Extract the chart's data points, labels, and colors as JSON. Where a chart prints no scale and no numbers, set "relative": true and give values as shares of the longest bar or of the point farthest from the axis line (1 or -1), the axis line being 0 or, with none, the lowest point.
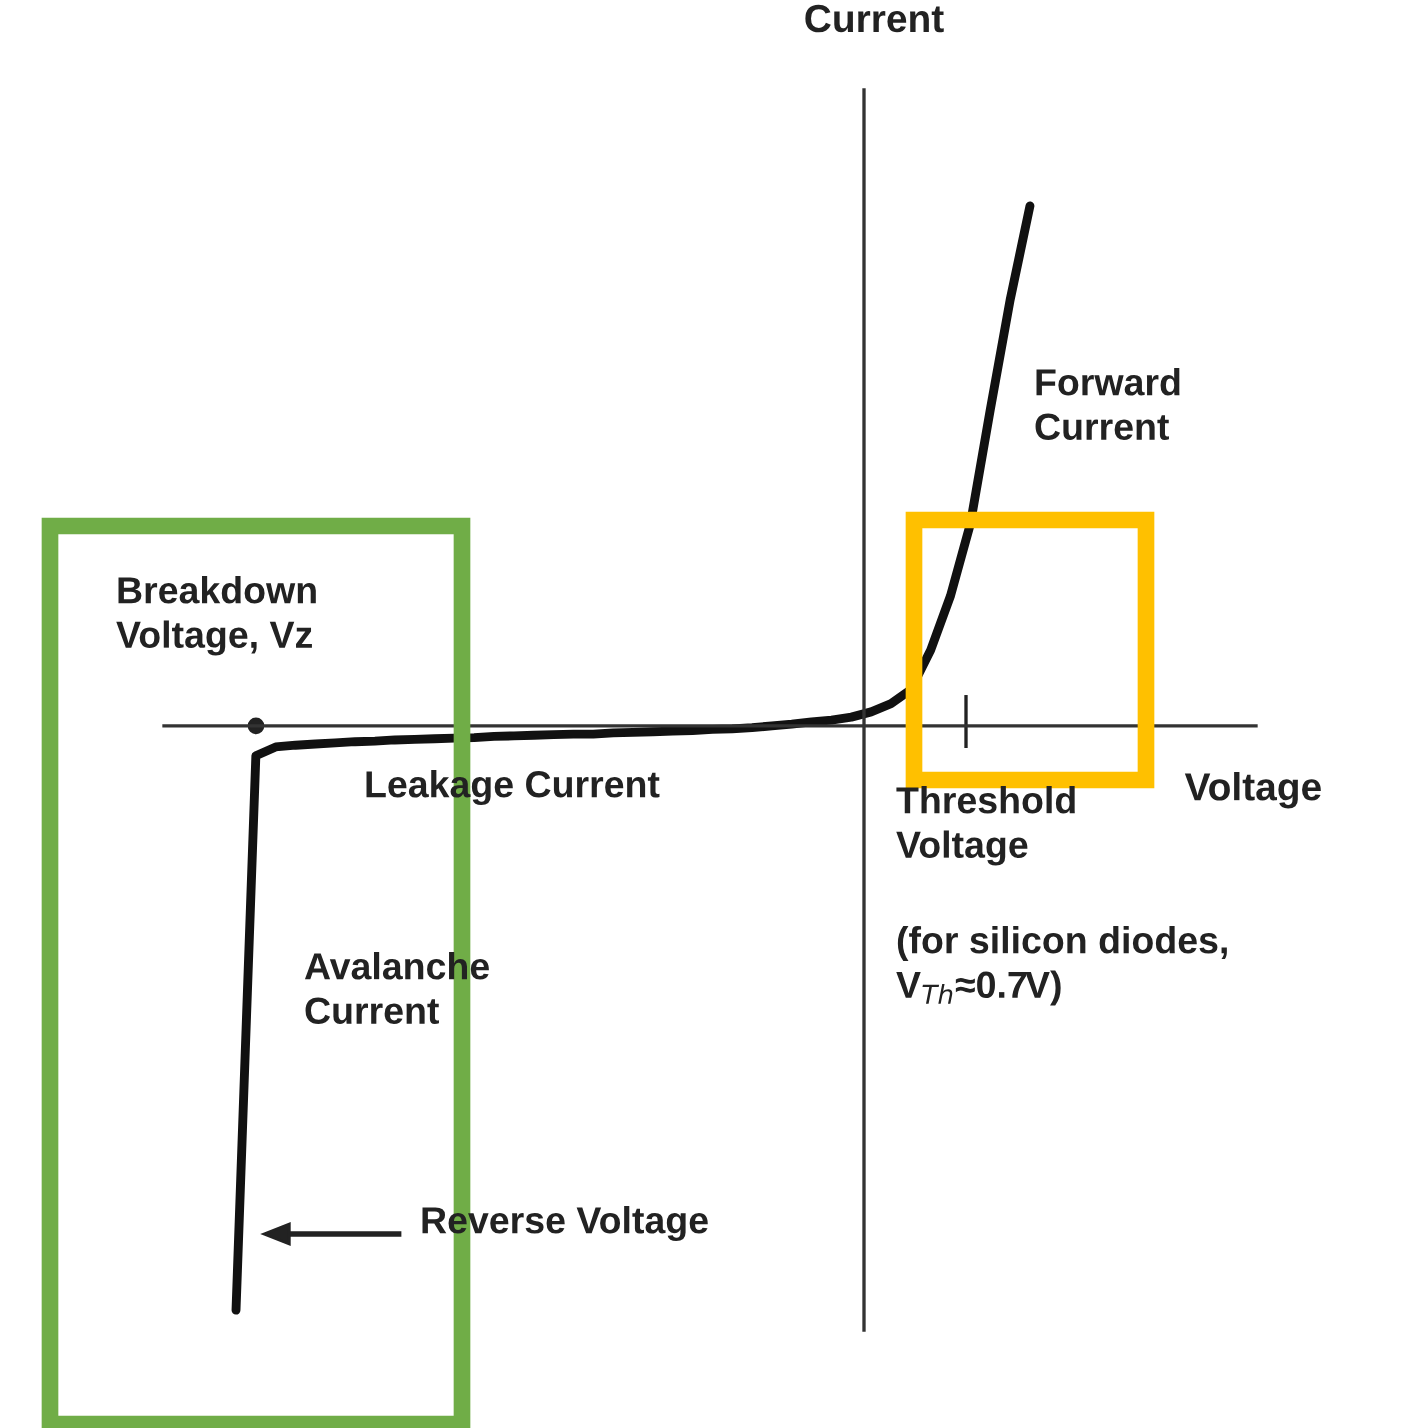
{
  "chart_data": {
    "type": "line",
    "relative": true,
    "xlabel": "Voltage",
    "ylabel": "Current",
    "color": "#111111",
    "marker": "none",
    "line_style": "solid",
    "categories": [
      null,
      null,
      null,
      null,
      null,
      null,
      null,
      null,
      null,
      null,
      null,
      null,
      null,
      null,
      null,
      null,
      null,
      null,
      null,
      null,
      null,
      null,
      null,
      null,
      null,
      null,
      null,
      null,
      null,
      null,
      null,
      null,
      null,
      null,
      null,
      null,
      null,
      null,
      null,
      null,
      null
    ],
    "values": [
      -1,
      -0.051,
      -0.036,
      -0.033,
      -0.031,
      -0.029,
      -0.027,
      -0.026,
      -0.024,
      -0.023,
      -0.022,
      -0.021,
      -0.02,
      -0.018,
      -0.017,
      -0.016,
      -0.015,
      -0.014,
      -0.014,
      -0.012,
      -0.011,
      -0.01,
      -0.009,
      -0.008,
      -0.006,
      -0.005,
      -0.003,
      0,
      0.003,
      0.007,
      0.01,
      0.015,
      0.024,
      0.038,
      0.062,
      0.13,
      0.223,
      0.346,
      0.541,
      0.729,
      0.89
    ],
    "annotations": [
      "Breakdown\nVoltage, Vz",
      "Leakage Current",
      "Threshold\nVoltage",
      "(for silicon diodes,\nV$_{Th}$≈0.7V)",
      "Avalanche\nCurrent",
      "Forward\nCurrent",
      "Reverse Voltage"
    ]
  }
}
